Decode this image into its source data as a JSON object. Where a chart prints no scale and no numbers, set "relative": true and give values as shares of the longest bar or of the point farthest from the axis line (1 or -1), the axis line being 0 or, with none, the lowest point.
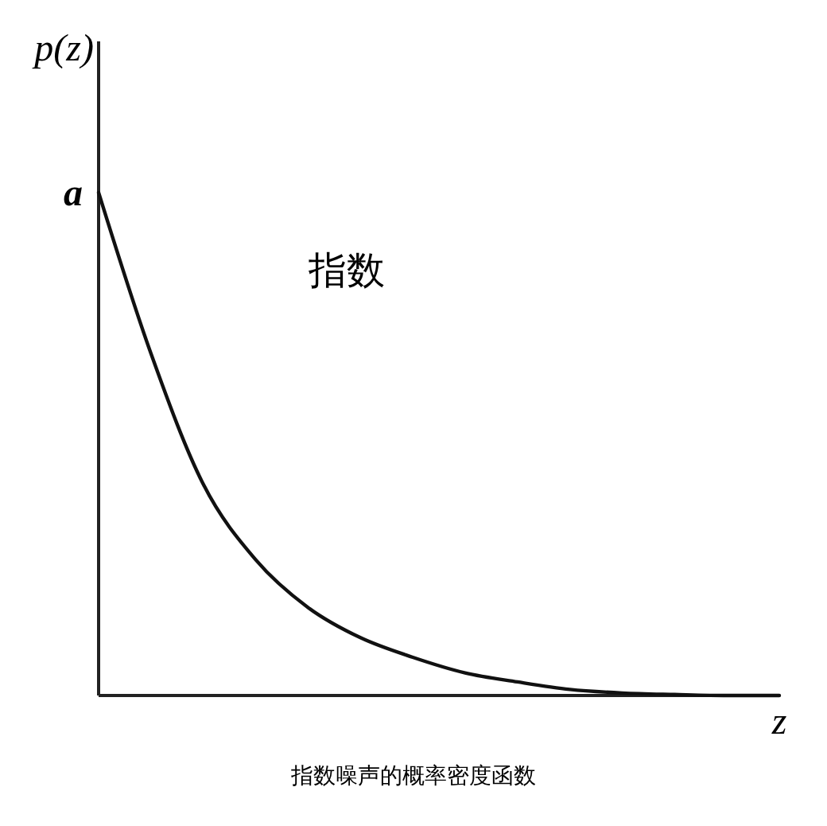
{
  "chart_data": {
    "type": "line",
    "relative": true,
    "title": "指数噪声的概率密度函数",
    "xlabel": "z",
    "ylabel": "p(z)",
    "categories": [
      null,
      null,
      null,
      null,
      null,
      null,
      null,
      null,
      null,
      null,
      null,
      null,
      null,
      null
    ],
    "series": [
      {
        "color": "#111111",
        "values": [
          1,
          0.68,
          0.42,
          0.27,
          0.175,
          0.115,
          0.076,
          0.045,
          0.027,
          0.012,
          0.005,
          0.002,
          0,
          0
        ]
      }
    ],
    "annotations": [
      "a",
      "指数"
    ],
    "marker": "none",
    "line_style": "solid"
  }
}
